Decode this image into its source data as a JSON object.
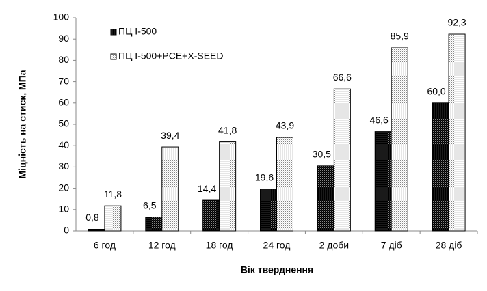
{
  "chart_data": {
    "type": "bar",
    "y_label": "Міцність на стиск, МПа",
    "x_label": "Вік тверднення",
    "categories": [
      "6 год",
      "12 год",
      "18 год",
      "24 год",
      "2 доби",
      "7 діб",
      "28 діб"
    ],
    "series": [
      {
        "name": "ПЦ І-500",
        "color": "#000000",
        "values": [
          0.8,
          6.5,
          14.4,
          19.6,
          30.5,
          46.6,
          60.0
        ],
        "value_labels": [
          "0,8",
          "6,5",
          "14,4",
          "19,6",
          "30,5",
          "46,6",
          "60,0"
        ]
      },
      {
        "name": "ПЦ І-500+PCE+X-SEED",
        "color": "#ffffff",
        "values": [
          11.8,
          39.4,
          41.8,
          43.9,
          66.6,
          85.9,
          92.3
        ],
        "value_labels": [
          "11,8",
          "39,4",
          "41,8",
          "43,9",
          "66,6",
          "85,9",
          "92,3"
        ]
      }
    ],
    "ylim": [
      0,
      100
    ],
    "yticks": [
      0,
      10,
      20,
      30,
      40,
      50,
      60,
      70,
      80,
      90,
      100
    ],
    "legend": "upper left"
  }
}
